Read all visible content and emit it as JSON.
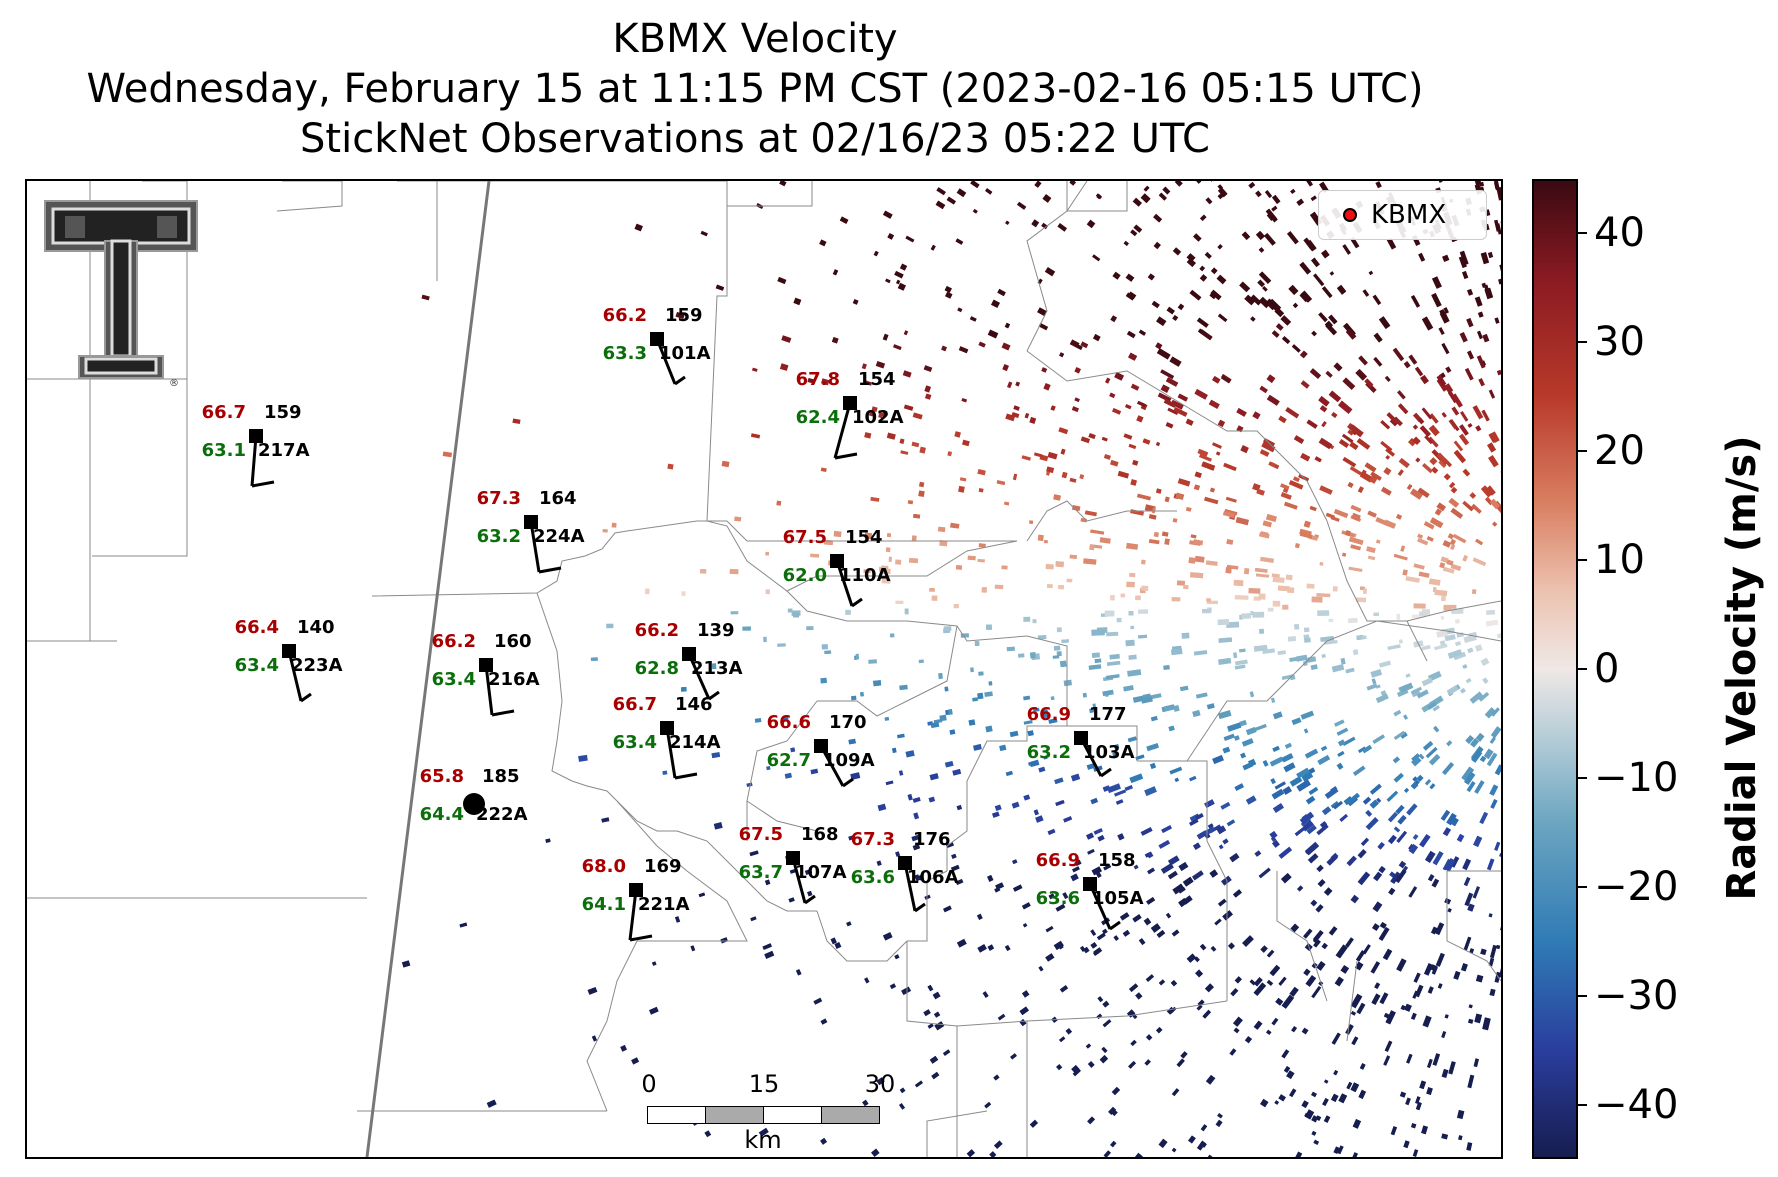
{
  "title": {
    "line1": "KBMX Velocity",
    "line2": "Wednesday, February 15 at 11:15 PM CST (2023-02-16 05:15 UTC)",
    "line3": "StickNet Observations at 02/16/23 05:22 UTC"
  },
  "legend": {
    "label": "KBMX",
    "marker_color": "#ee1111"
  },
  "logo": {
    "name": "texas-tech-double-t-logo",
    "text": "®"
  },
  "scale_bar": {
    "ticks": [
      "0",
      "15",
      "30"
    ],
    "unit": "km"
  },
  "colorbar": {
    "title": "Radial Velocity (m/s)",
    "ticks": [
      "40",
      "30",
      "20",
      "10",
      "0",
      "−10",
      "−20",
      "−30",
      "−40"
    ],
    "tick_values": [
      40,
      30,
      20,
      10,
      0,
      -10,
      -20,
      -30,
      -40
    ],
    "range": [
      -45,
      45
    ],
    "colors": [
      "#161d4f",
      "#2a3e9e",
      "#2f7bb5",
      "#6aa4c0",
      "#b5cdd7",
      "#efe8e6",
      "#ecc2af",
      "#d97f62",
      "#b8392a",
      "#8a1a22",
      "#3a0a12"
    ]
  },
  "stations": [
    {
      "id": "101A",
      "temp": "66.2",
      "dew": "63.3",
      "pressure": "159"
    },
    {
      "id": "217A",
      "temp": "66.7",
      "dew": "63.1",
      "pressure": "159"
    },
    {
      "id": "102A",
      "temp": "67.8",
      "dew": "62.4",
      "pressure": "154"
    },
    {
      "id": "224A",
      "temp": "67.3",
      "dew": "63.2",
      "pressure": "164"
    },
    {
      "id": "110A",
      "temp": "67.5",
      "dew": "62.0",
      "pressure": "154"
    },
    {
      "id": "223A",
      "temp": "66.4",
      "dew": "63.4",
      "pressure": "140"
    },
    {
      "id": "216A",
      "temp": "66.2",
      "dew": "63.4",
      "pressure": "160"
    },
    {
      "id": "213A",
      "temp": "66.2",
      "dew": "62.8",
      "pressure": "139"
    },
    {
      "id": "214A",
      "temp": "66.7",
      "dew": "63.4",
      "pressure": "146"
    },
    {
      "id": "109A",
      "temp": "66.6",
      "dew": "62.7",
      "pressure": "170"
    },
    {
      "id": "103A",
      "temp": "66.9",
      "dew": "63.2",
      "pressure": "177"
    },
    {
      "id": "222A",
      "temp": "65.8",
      "dew": "64.4",
      "pressure": "185"
    },
    {
      "id": "107A",
      "temp": "67.5",
      "dew": "63.7",
      "pressure": "168"
    },
    {
      "id": "106A",
      "temp": "67.3",
      "dew": "63.6",
      "pressure": "176"
    },
    {
      "id": "221A",
      "temp": "68.0",
      "dew": "64.1",
      "pressure": "169"
    },
    {
      "id": "105A",
      "temp": "66.9",
      "dew": "63.6",
      "pressure": "158"
    }
  ]
}
